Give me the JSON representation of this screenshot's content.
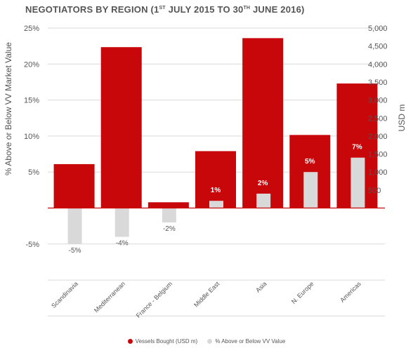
{
  "title": {
    "main": "NEGOTIATORS BY REGION  (1",
    "sup1": "ST",
    "mid": " JULY 2015 TO 30",
    "sup2": "TH",
    "end": " JUNE 2016)"
  },
  "colors": {
    "vessels": "#c8070b",
    "pct": "#d9d9d9",
    "grid": "#d9d9d9",
    "axis": "#c8070b"
  },
  "chart_data": {
    "type": "bar",
    "categories": [
      "Scandinavia",
      "Mediterranean",
      "France - Belgium",
      "Middle East",
      "Asia",
      "N. Europe",
      "Americas"
    ],
    "series": [
      {
        "name": "Vessels Bought (USD m)",
        "axis": "right",
        "values": [
          1220,
          4470,
          160,
          1580,
          4720,
          2030,
          3460
        ]
      },
      {
        "name": "% Above or Below VV Value",
        "axis": "left",
        "values": [
          -5,
          -4,
          -2,
          1,
          2,
          5,
          7
        ]
      }
    ],
    "pct_labels": [
      "-5%",
      "-4%",
      "-2%",
      "1%",
      "2%",
      "5%",
      "7%"
    ],
    "y_left": {
      "label": "% Above or Below VV Market Value",
      "ticks": [
        "25%",
        "20%",
        "15%",
        "10%",
        "5%",
        "-5%"
      ],
      "tick_values": [
        25,
        20,
        15,
        10,
        5,
        -5
      ],
      "range": [
        -10,
        25
      ]
    },
    "y_right": {
      "label": "USD m",
      "ticks": [
        "5,000",
        "4,500",
        "4,000",
        "3,500",
        "3,000",
        "2,500",
        "2,000",
        "1,500",
        "1,000",
        "500"
      ],
      "tick_values": [
        5000,
        4500,
        4000,
        3500,
        3000,
        2500,
        2000,
        1500,
        1000,
        500
      ],
      "range": [
        0,
        5000
      ]
    },
    "grid": true,
    "legend": "bottom-center"
  },
  "legend": {
    "vessels": "Vessels Bought (USD m)",
    "pct": "% Above or Below VV Value"
  }
}
